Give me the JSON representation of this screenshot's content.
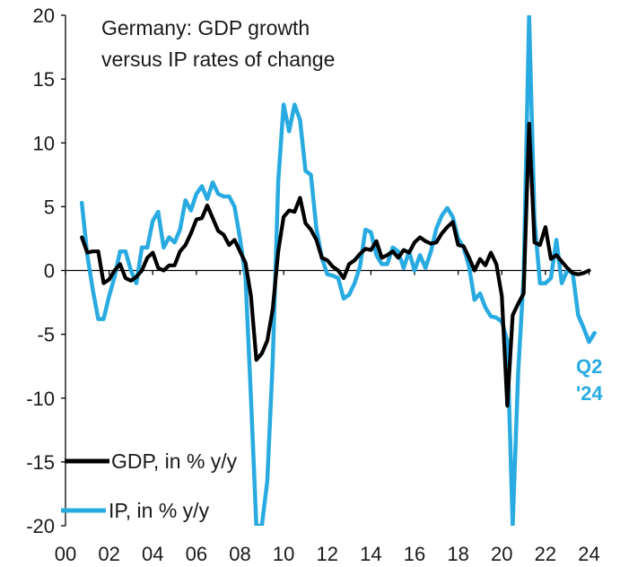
{
  "chart_data": {
    "type": "line",
    "title": "Germany: GDP growth versus IP rates of change",
    "title_lines": [
      "Germany: GDP growth",
      "versus IP rates of change"
    ],
    "xlabel": "",
    "ylabel": "",
    "xlim": [
      2000,
      2025.5
    ],
    "ylim": [
      -20,
      20
    ],
    "x_ticks": [
      {
        "value": 2000,
        "label": "00"
      },
      {
        "value": 2002,
        "label": "02"
      },
      {
        "value": 2004,
        "label": "04"
      },
      {
        "value": 2006,
        "label": "06"
      },
      {
        "value": 2008,
        "label": "08"
      },
      {
        "value": 2010,
        "label": "10"
      },
      {
        "value": 2012,
        "label": "12"
      },
      {
        "value": 2014,
        "label": "14"
      },
      {
        "value": 2016,
        "label": "16"
      },
      {
        "value": 2018,
        "label": "18"
      },
      {
        "value": 2020,
        "label": "20"
      },
      {
        "value": 2022,
        "label": "22"
      },
      {
        "value": 2024,
        "label": "24"
      }
    ],
    "y_ticks": [
      {
        "value": 20,
        "label": "20"
      },
      {
        "value": 15,
        "label": "15"
      },
      {
        "value": 10,
        "label": "10"
      },
      {
        "value": 5,
        "label": "5"
      },
      {
        "value": 0,
        "label": "0"
      },
      {
        "value": -5,
        "label": "-5"
      },
      {
        "value": -10,
        "label": "-10"
      },
      {
        "value": -15,
        "label": "-15"
      },
      {
        "value": -20,
        "label": "-20"
      }
    ],
    "legend": {
      "position": "bottom-left",
      "items": [
        {
          "label": "GDP, in % y/y",
          "color": "#000000"
        },
        {
          "label": "IP, in % y/y",
          "color": "#29abe2"
        }
      ]
    },
    "annotation": {
      "lines": [
        "Q2",
        "'24"
      ],
      "color": "#29abe2",
      "x": 2024.4,
      "y": -8.6
    },
    "series": [
      {
        "name": "GDP, in % y/y",
        "color": "#000000",
        "x": [
          2000.75,
          2001.0,
          2001.25,
          2001.5,
          2001.75,
          2002.0,
          2002.25,
          2002.5,
          2002.75,
          2003.0,
          2003.25,
          2003.5,
          2003.75,
          2004.0,
          2004.25,
          2004.5,
          2004.75,
          2005.0,
          2005.25,
          2005.5,
          2005.75,
          2006.0,
          2006.25,
          2006.5,
          2006.75,
          2007.0,
          2007.25,
          2007.5,
          2007.75,
          2008.0,
          2008.25,
          2008.5,
          2008.75,
          2009.0,
          2009.25,
          2009.5,
          2009.75,
          2010.0,
          2010.25,
          2010.5,
          2010.75,
          2011.0,
          2011.25,
          2011.5,
          2011.75,
          2012.0,
          2012.25,
          2012.5,
          2012.75,
          2013.0,
          2013.25,
          2013.5,
          2013.75,
          2014.0,
          2014.25,
          2014.5,
          2014.75,
          2015.0,
          2015.25,
          2015.5,
          2015.75,
          2016.0,
          2016.25,
          2016.5,
          2016.75,
          2017.0,
          2017.25,
          2017.5,
          2017.75,
          2018.0,
          2018.25,
          2018.5,
          2018.75,
          2019.0,
          2019.25,
          2019.5,
          2019.75,
          2020.0,
          2020.25,
          2020.5,
          2020.75,
          2021.0,
          2021.25,
          2021.5,
          2021.75,
          2022.0,
          2022.25,
          2022.5,
          2022.75,
          2023.0,
          2023.25,
          2023.5,
          2023.75,
          2024.0
        ],
        "values": [
          2.6,
          1.4,
          1.5,
          1.5,
          -1.0,
          -0.7,
          0.0,
          0.5,
          -0.6,
          -0.8,
          -0.5,
          0.0,
          1.0,
          1.4,
          0.2,
          0.0,
          0.4,
          0.4,
          1.5,
          2.0,
          2.9,
          4.0,
          4.1,
          5.1,
          4.1,
          3.1,
          2.8,
          2.0,
          2.4,
          1.5,
          0.6,
          -2.0,
          -7.0,
          -6.5,
          -5.5,
          -3.0,
          1.5,
          4.2,
          4.7,
          4.6,
          5.7,
          3.7,
          3.2,
          2.4,
          1.0,
          0.8,
          0.3,
          0.0,
          -0.6,
          0.5,
          0.8,
          1.3,
          1.7,
          1.6,
          2.3,
          1.0,
          1.2,
          1.5,
          1.0,
          1.6,
          1.4,
          2.2,
          2.6,
          2.3,
          2.1,
          2.2,
          2.9,
          3.4,
          3.8,
          2.0,
          1.9,
          1.0,
          0.0,
          0.9,
          0.4,
          1.4,
          0.5,
          -2.0,
          -10.6,
          -3.5,
          -2.6,
          -1.8,
          11.5,
          2.2,
          2.0,
          3.4,
          0.9,
          1.2,
          0.7,
          0.2,
          -0.2,
          -0.3,
          -0.2,
          0.0
        ]
      },
      {
        "name": "IP, in % y/y",
        "color": "#29abe2",
        "x": [
          2000.75,
          2001.0,
          2001.25,
          2001.5,
          2001.75,
          2002.0,
          2002.25,
          2002.5,
          2002.75,
          2003.0,
          2003.25,
          2003.5,
          2003.75,
          2004.0,
          2004.25,
          2004.5,
          2004.75,
          2005.0,
          2005.25,
          2005.5,
          2005.75,
          2006.0,
          2006.25,
          2006.5,
          2006.75,
          2007.0,
          2007.25,
          2007.5,
          2007.75,
          2008.0,
          2008.25,
          2008.5,
          2008.75,
          2009.0,
          2009.25,
          2009.5,
          2009.75,
          2010.0,
          2010.25,
          2010.5,
          2010.75,
          2011.0,
          2011.25,
          2011.5,
          2011.75,
          2012.0,
          2012.25,
          2012.5,
          2012.75,
          2013.0,
          2013.25,
          2013.5,
          2013.75,
          2014.0,
          2014.25,
          2014.5,
          2014.75,
          2015.0,
          2015.25,
          2015.5,
          2015.75,
          2016.0,
          2016.25,
          2016.5,
          2016.75,
          2017.0,
          2017.25,
          2017.5,
          2017.75,
          2018.0,
          2018.25,
          2018.5,
          2018.75,
          2019.0,
          2019.25,
          2019.5,
          2019.75,
          2020.0,
          2020.25,
          2020.5,
          2020.75,
          2021.0,
          2021.25,
          2021.5,
          2021.75,
          2022.0,
          2022.25,
          2022.5,
          2022.75,
          2023.0,
          2023.25,
          2023.5,
          2023.75,
          2024.0,
          2024.25
        ],
        "values": [
          5.3,
          1.2,
          -1.5,
          -3.8,
          -3.8,
          -2.0,
          -0.5,
          1.5,
          1.5,
          0.0,
          -1.0,
          1.8,
          1.8,
          3.9,
          4.6,
          1.8,
          2.6,
          2.2,
          3.2,
          5.5,
          4.7,
          6.0,
          6.6,
          5.6,
          6.9,
          6.0,
          5.8,
          5.8,
          5.0,
          2.5,
          -0.5,
          -10.0,
          -20.0,
          -20.0,
          -16.5,
          -7.0,
          7.0,
          13.0,
          10.9,
          13.0,
          11.8,
          7.8,
          7.5,
          3.3,
          1.0,
          -0.3,
          -0.4,
          -0.6,
          -2.2,
          -1.9,
          -1.0,
          0.3,
          3.2,
          3.0,
          1.2,
          0.5,
          0.5,
          1.8,
          1.5,
          0.2,
          1.5,
          0.0,
          1.2,
          0.2,
          1.5,
          3.3,
          4.3,
          4.9,
          4.2,
          2.5,
          1.8,
          0.3,
          -2.3,
          -1.8,
          -2.9,
          -3.6,
          -3.7,
          -4.0,
          -5.5,
          -20.0,
          -8.0,
          -0.5,
          20.0,
          4.0,
          -1.0,
          -1.0,
          -0.6,
          2.4,
          -1.0,
          0.0,
          -0.2,
          -3.5,
          -4.5,
          -5.6,
          -4.9
        ]
      }
    ]
  }
}
